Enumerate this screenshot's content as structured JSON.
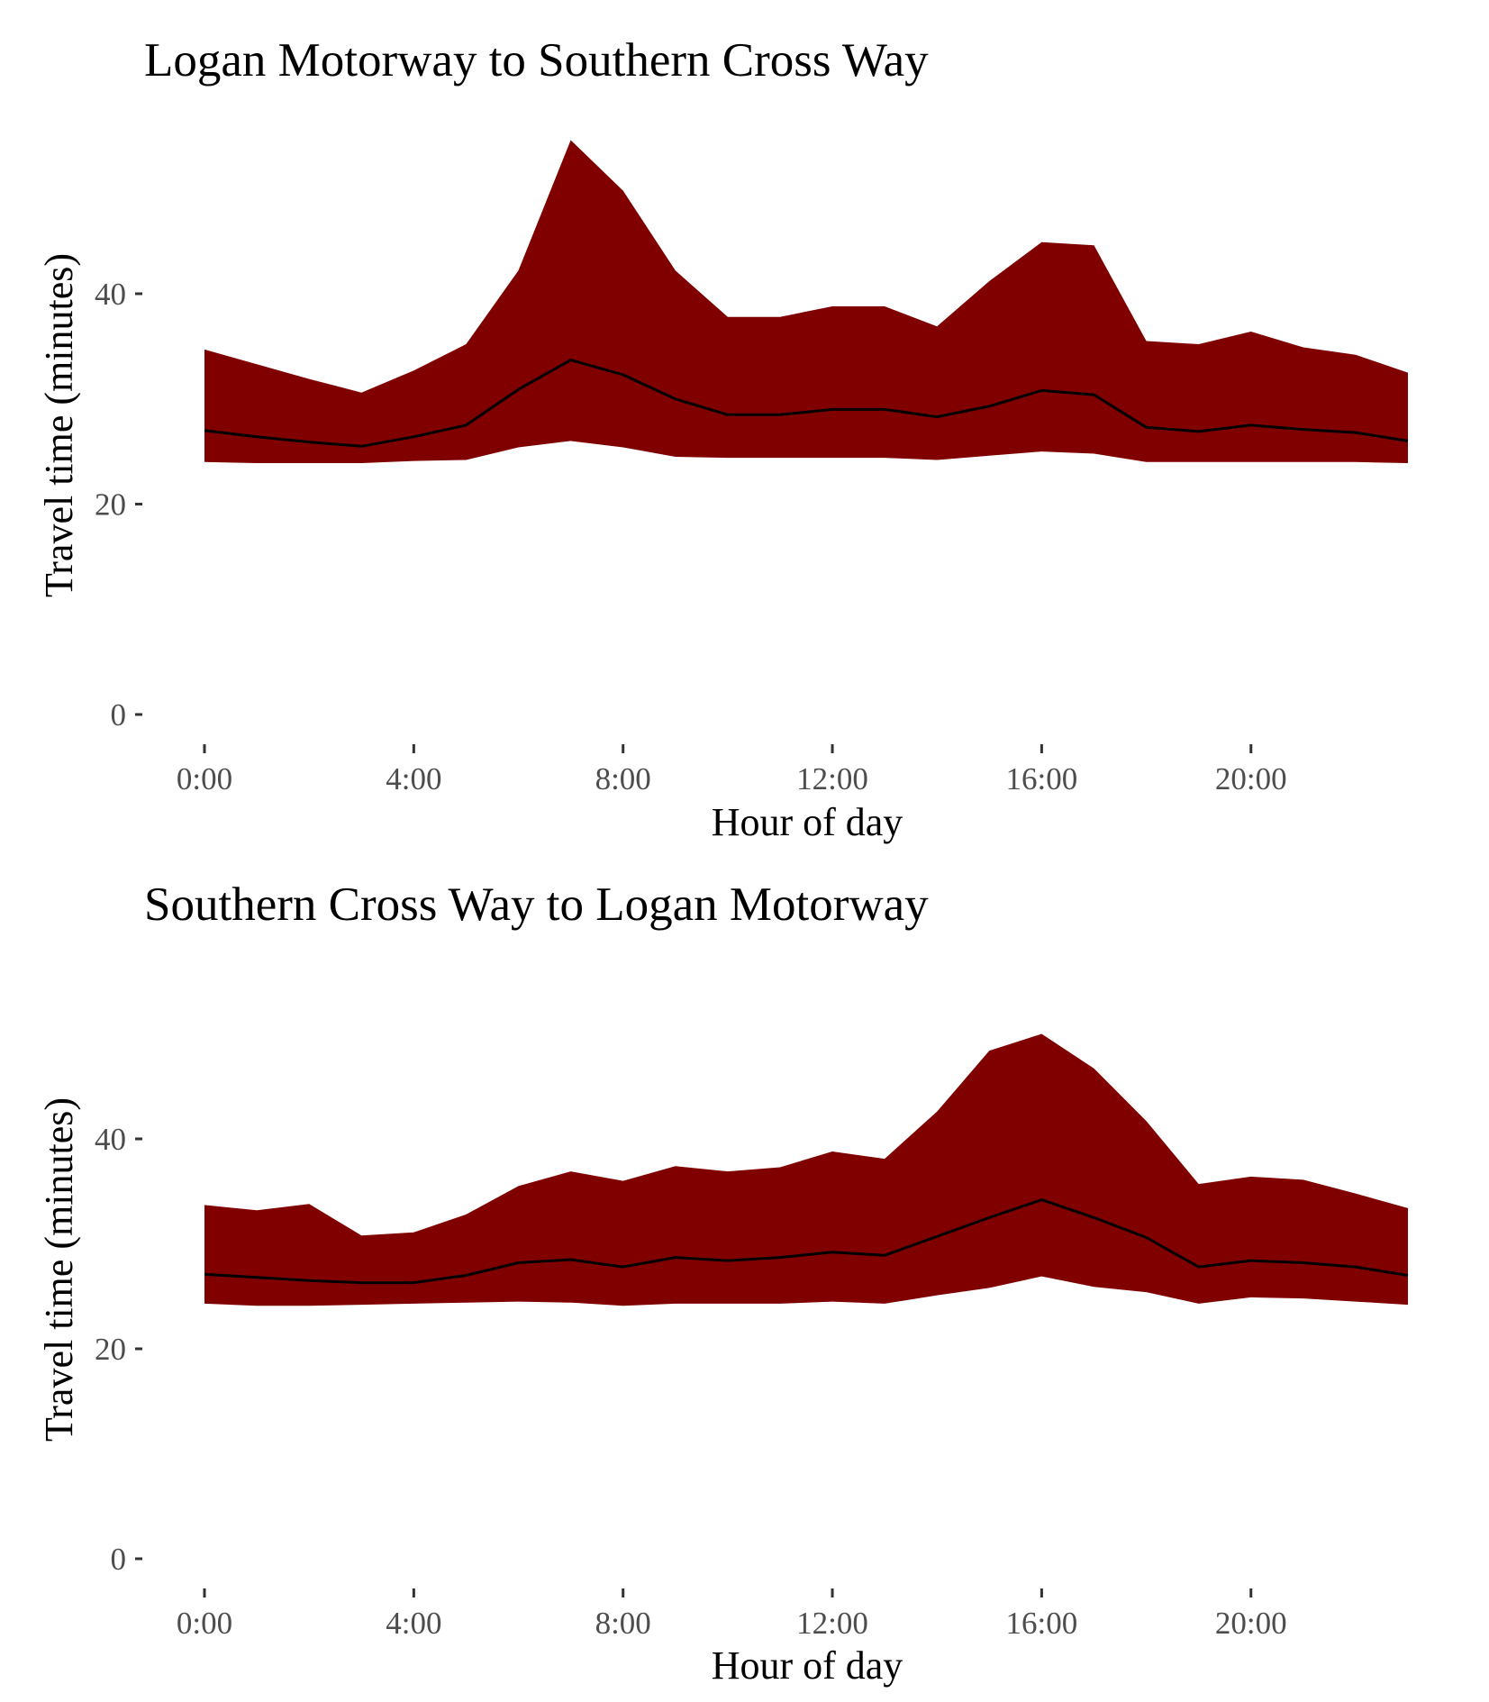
{
  "colors": {
    "band_fill": "#800000",
    "median_line": "#000000",
    "tick_text": "#4d4d4d",
    "axis_ticks": "#333333"
  },
  "chart_data": [
    {
      "type": "area",
      "title": "Logan Motorway to Southern Cross Way",
      "xlabel": "Hour of day",
      "ylabel": "Travel time (minutes)",
      "xlim": [
        0,
        23
      ],
      "ylim": [
        0,
        55
      ],
      "x_ticks": [
        0,
        4,
        8,
        12,
        16,
        20
      ],
      "x_tick_labels": [
        "0:00",
        "4:00",
        "8:00",
        "12:00",
        "16:00",
        "20:00"
      ],
      "y_ticks": [
        0,
        20,
        40
      ],
      "y_tick_labels": [
        "0",
        "20",
        "40"
      ],
      "grid": false,
      "hours": [
        0,
        1,
        2,
        3,
        4,
        5,
        6,
        7,
        8,
        9,
        10,
        11,
        12,
        13,
        14,
        15,
        16,
        17,
        18,
        19,
        20,
        21,
        22,
        23
      ],
      "upper": [
        34.7,
        33.3,
        31.9,
        30.6,
        32.7,
        35.2,
        42.2,
        54.6,
        49.8,
        42.2,
        37.8,
        37.8,
        38.8,
        38.8,
        36.9,
        41.2,
        44.9,
        44.6,
        35.5,
        35.2,
        36.4,
        34.9,
        34.2,
        32.5
      ],
      "median": [
        27.0,
        26.4,
        25.9,
        25.5,
        26.4,
        27.5,
        30.9,
        33.7,
        32.3,
        30.0,
        28.5,
        28.5,
        29.0,
        29.0,
        28.3,
        29.3,
        30.8,
        30.4,
        27.3,
        26.9,
        27.5,
        27.1,
        26.8,
        26.0
      ],
      "lower": [
        24.0,
        23.9,
        23.9,
        23.9,
        24.1,
        24.2,
        25.4,
        26.0,
        25.4,
        24.5,
        24.4,
        24.4,
        24.4,
        24.4,
        24.2,
        24.6,
        25.0,
        24.8,
        24.0,
        24.0,
        24.0,
        24.0,
        24.0,
        23.9
      ]
    },
    {
      "type": "area",
      "title": "Southern Cross Way to Logan Motorway",
      "xlabel": "Hour of day",
      "ylabel": "Travel time (minutes)",
      "xlim": [
        0,
        23
      ],
      "ylim": [
        0,
        55
      ],
      "x_ticks": [
        0,
        4,
        8,
        12,
        16,
        20
      ],
      "x_tick_labels": [
        "0:00",
        "4:00",
        "8:00",
        "12:00",
        "16:00",
        "20:00"
      ],
      "y_ticks": [
        0,
        20,
        40
      ],
      "y_tick_labels": [
        "0",
        "20",
        "40"
      ],
      "grid": false,
      "hours": [
        0,
        1,
        2,
        3,
        4,
        5,
        6,
        7,
        8,
        9,
        10,
        11,
        12,
        13,
        14,
        15,
        16,
        17,
        18,
        19,
        20,
        21,
        22,
        23
      ],
      "upper": [
        33.7,
        33.2,
        33.8,
        30.8,
        31.1,
        32.8,
        35.5,
        36.9,
        36.0,
        37.4,
        36.9,
        37.3,
        38.8,
        38.1,
        42.6,
        48.4,
        50.0,
        46.7,
        41.7,
        35.7,
        36.4,
        36.1,
        34.8,
        33.4
      ],
      "median": [
        27.1,
        26.8,
        26.5,
        26.3,
        26.3,
        27.0,
        28.2,
        28.5,
        27.8,
        28.7,
        28.4,
        28.7,
        29.2,
        28.9,
        30.7,
        32.5,
        34.2,
        32.5,
        30.6,
        27.8,
        28.4,
        28.2,
        27.8,
        27.0
      ],
      "lower": [
        24.3,
        24.1,
        24.1,
        24.2,
        24.3,
        24.4,
        24.5,
        24.4,
        24.1,
        24.3,
        24.3,
        24.3,
        24.5,
        24.3,
        25.1,
        25.8,
        26.9,
        25.9,
        25.4,
        24.3,
        24.9,
        24.8,
        24.5,
        24.2
      ]
    }
  ]
}
